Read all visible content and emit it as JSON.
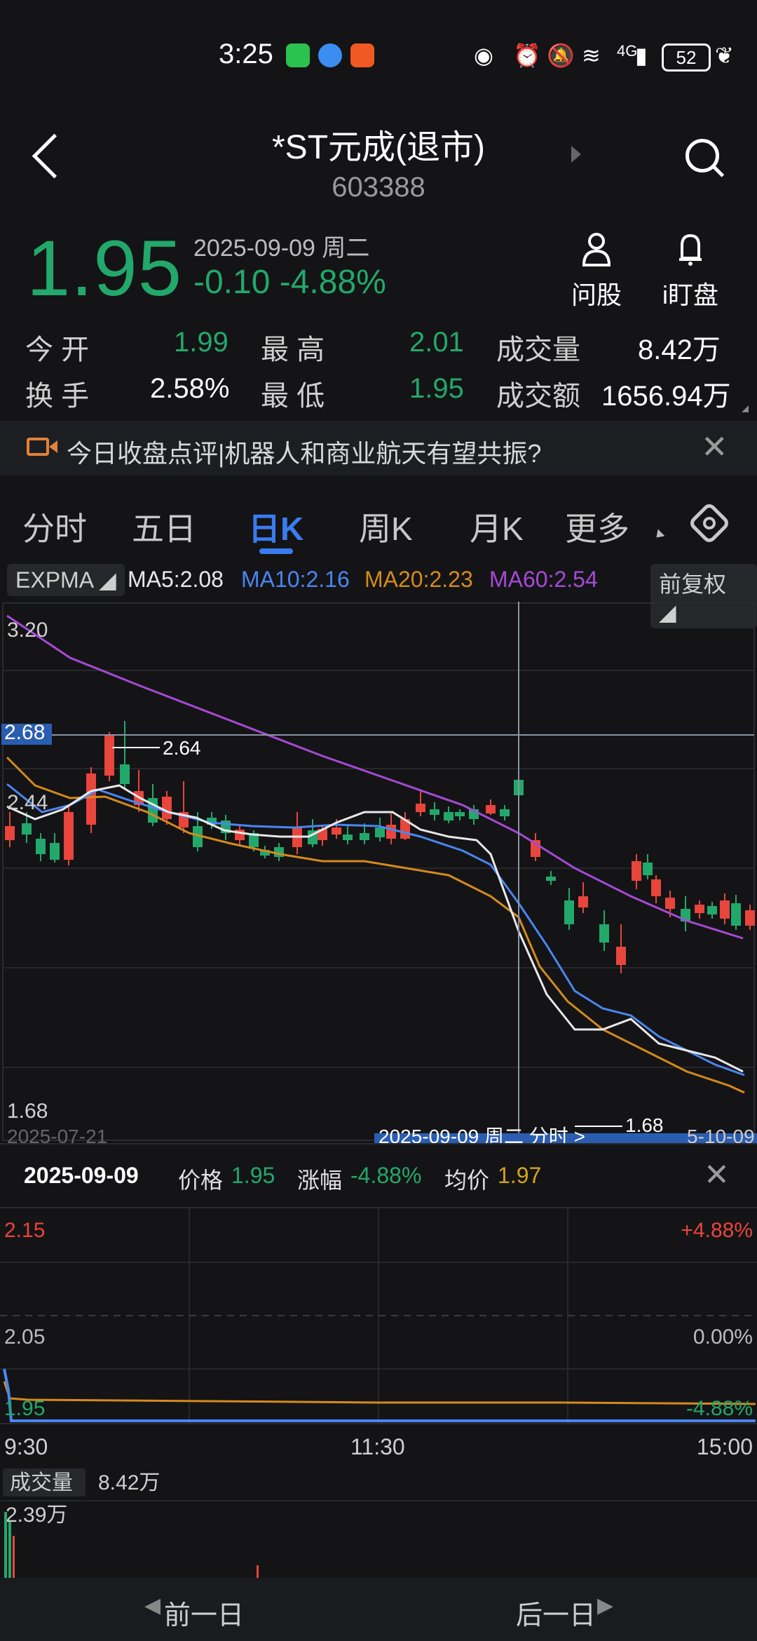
{
  "status_bar": {
    "time": "3:25",
    "battery": "52",
    "network": "4G"
  },
  "header": {
    "title": "*ST元成(退市)",
    "code": "603388"
  },
  "quote": {
    "price": "1.95",
    "date": "2025-09-09 周二",
    "change": "-0.10 -4.88%",
    "ask_label": "问股",
    "watch_label": "i盯盘",
    "open_label": "今  开",
    "open": "1.99",
    "high_label": "最  高",
    "high": "2.01",
    "volume_label": "成交量",
    "volume": "8.42万",
    "turnover_label": "换  手",
    "turnover": "2.58%",
    "low_label": "最  低",
    "low": "1.95",
    "amount_label": "成交额",
    "amount": "1656.94万"
  },
  "banner": {
    "text": "今日收盘点评|机器人和商业航天有望共振?"
  },
  "tabs": [
    {
      "label": "分时"
    },
    {
      "label": "五日"
    },
    {
      "label": "日K"
    },
    {
      "label": "周K"
    },
    {
      "label": "月K"
    },
    {
      "label": "更多"
    }
  ],
  "indicators": {
    "expma": "EXPMA",
    "ma5": "MA5:2.08",
    "ma10": "MA10:2.16",
    "ma20": "MA20:2.23",
    "ma60": "MA60:2.54",
    "adjust": "前复权"
  },
  "kline": {
    "ymax_label": "3.20",
    "cross_label": "2.68",
    "mid_label": "2.44",
    "ymin_label": "1.68",
    "high_annot": "2.64",
    "low_annot": "1.68",
    "start_date": "2025-07-21",
    "cursor_date": "2025-09-09 周二 分时 >",
    "end_date": "5-10-09"
  },
  "detail": {
    "date": "2025-09-09",
    "price_label": "价格",
    "price": "1.95",
    "change_label": "涨幅",
    "change": "-4.88%",
    "avg_label": "均价",
    "avg": "1.97"
  },
  "intraday": {
    "top_price": "2.15",
    "top_pct": "+4.88%",
    "mid_price": "2.05",
    "mid_pct": "0.00%",
    "low_price": "1.95",
    "low_pct": "-4.88%",
    "t_open": "9:30",
    "t_mid": "11:30",
    "t_close": "15:00",
    "volume_label": "成交量",
    "volume": "8.42万",
    "vol_max": "2.39万"
  },
  "bottom_nav": {
    "prev": "前一日",
    "next": "后一日"
  },
  "colors": {
    "up": "#e8453c",
    "down": "#23a86b",
    "ma5": "#e8e8e8",
    "ma10": "#4a86f0",
    "ma20": "#d48a1c",
    "ma60": "#a64ad6"
  }
}
